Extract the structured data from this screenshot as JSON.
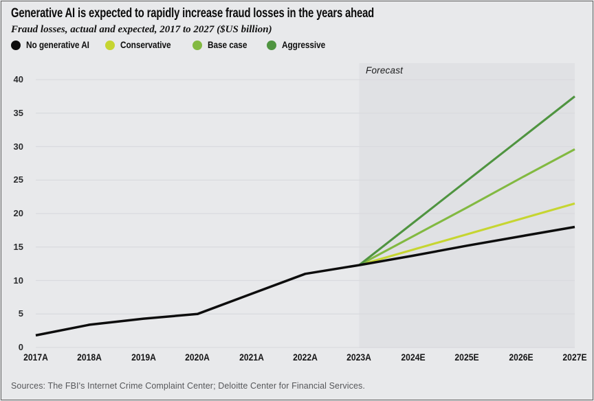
{
  "header": {
    "title": "Generative AI is expected to rapidly increase fraud losses in the years ahead",
    "subtitle": "Fraud losses, actual and expected, 2017 to 2027 ($US billion)"
  },
  "plot": {
    "forecast_label": "Forecast"
  },
  "footer": {
    "source": "Sources: The FBI's Internet Crime Complaint Center; Deloitte Center for Financial Services."
  },
  "chart_data": {
    "type": "line",
    "title": "Generative AI is expected to rapidly increase fraud losses in the years ahead",
    "subtitle": "Fraud losses, actual and expected, 2017 to 2027 ($US billion)",
    "unit": "$US billion",
    "x_categories": [
      "2017A",
      "2018A",
      "2019A",
      "2020A",
      "2021A",
      "2022A",
      "2023A",
      "2024E",
      "2025E",
      "2026E",
      "2027E"
    ],
    "y_ticks": [
      0,
      5,
      10,
      15,
      20,
      25,
      30,
      35,
      40
    ],
    "ylim": [
      0,
      42.5
    ],
    "grid": "horizontal",
    "legend_position": "top",
    "forecast_region": {
      "label": "Forecast",
      "start_category": "2023A",
      "end_category": "2027E"
    },
    "series": [
      {
        "name": "No generative AI",
        "color": "#0d0d0d",
        "years": [
          2017,
          2018,
          2019,
          2020,
          2021,
          2022,
          2023,
          2024,
          2025,
          2026,
          2027
        ],
        "values": [
          1.8,
          3.4,
          4.3,
          5.0,
          8.0,
          11.0,
          12.3,
          13.7,
          15.2,
          16.6,
          18.0
        ]
      },
      {
        "name": "Conservative",
        "color": "#c6d531",
        "years": [
          2023,
          2024,
          2025,
          2026,
          2027
        ],
        "values": [
          12.3,
          14.6,
          16.9,
          19.2,
          21.5
        ]
      },
      {
        "name": "Base case",
        "color": "#82b941",
        "years": [
          2023,
          2024,
          2025,
          2026,
          2027
        ],
        "values": [
          12.3,
          16.6,
          20.9,
          25.3,
          29.6
        ]
      },
      {
        "name": "Aggressive",
        "color": "#4f9440",
        "years": [
          2023,
          2024,
          2025,
          2026,
          2027
        ],
        "values": [
          12.3,
          18.6,
          24.9,
          31.2,
          37.5
        ]
      }
    ]
  }
}
